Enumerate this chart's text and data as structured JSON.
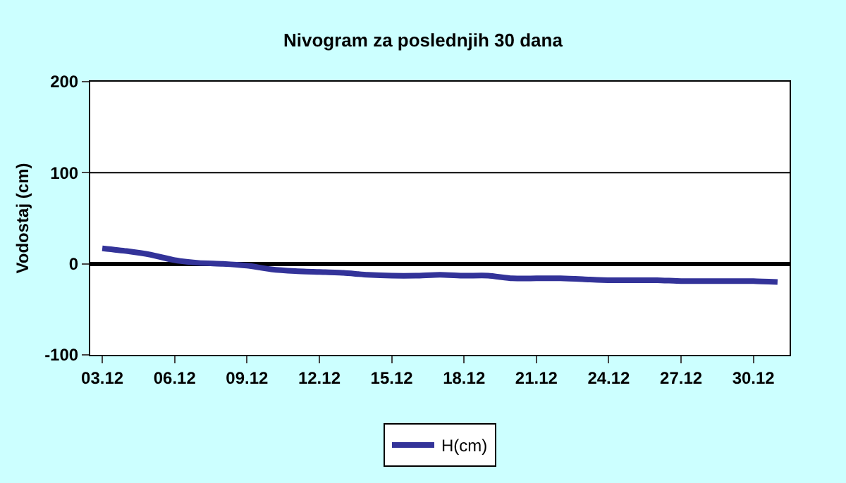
{
  "chart_data": {
    "type": "line",
    "title": "Nivogram za poslednjih 30 dana",
    "ylabel": "Vodostaj (cm)",
    "categories": [
      "03.12",
      null,
      null,
      "06.12",
      null,
      null,
      "09.12",
      null,
      null,
      "12.12",
      null,
      null,
      "15.12",
      null,
      null,
      "18.12",
      null,
      null,
      "21.12",
      null,
      null,
      "24.12",
      null,
      null,
      "27.12",
      null,
      null,
      "30.12",
      null
    ],
    "series": [
      {
        "name": "H(cm)",
        "color": "#333399",
        "values": [
          17,
          14,
          10,
          4,
          1,
          0,
          -2,
          -6,
          -8,
          -9,
          -10,
          -12,
          -13,
          -13,
          -12,
          -13,
          -13,
          -16,
          -16,
          -16,
          -17,
          -18,
          -18,
          -18,
          -19,
          -19,
          -19,
          -19,
          -20
        ]
      }
    ],
    "ylim": [
      -100,
      200
    ],
    "yticks": [
      -100,
      0,
      100,
      200
    ],
    "legend": "bottom",
    "marker": "none",
    "line_style": "solid",
    "ref_lines": [
      {
        "axis": "y",
        "value": 100,
        "color": "#000000"
      }
    ]
  }
}
